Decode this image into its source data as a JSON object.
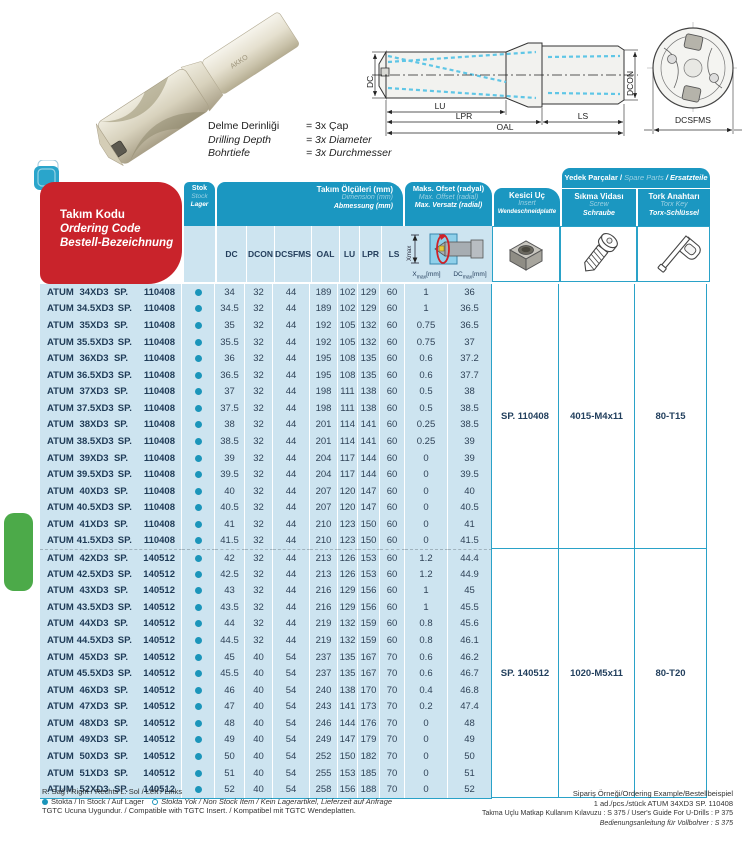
{
  "top": {
    "photo_brand": "AKKO",
    "depth_note": [
      [
        "Delme Derinliği",
        "= 3x Çap"
      ],
      [
        "Drilling Depth",
        "= 3x Diameter"
      ],
      [
        "Bohrtiefe",
        "= 3x Durchmesser"
      ]
    ],
    "diagram_labels": {
      "dc": "DC",
      "dcon": "DCON",
      "lu": "LU",
      "lpr": "LPR",
      "oal": "OAL",
      "ls": "LS",
      "dcsfms": "DCSFMS"
    }
  },
  "table": {
    "code_brand": "ATUM",
    "title": [
      "Takım Kodu",
      "Ordering Code",
      "Bestell-Bezeichnung"
    ],
    "stock_header": [
      "Stok",
      "Stock",
      "Lager"
    ],
    "dim_header": [
      "Takım Ölçüleri (mm)",
      "Dimension (mm)",
      "Abmessung (mm)"
    ],
    "dim_cols": [
      "DC",
      "DCON",
      "DCSFMS",
      "OAL",
      "LU",
      "LPR",
      "LS"
    ],
    "offset_header": [
      "Maks. Ofset (radyal)",
      "Max. Offset (radial)",
      "Max. Versatz (radial)"
    ],
    "offset_diagram_label": "Xmax",
    "offset_sub": [
      {
        "b": "X",
        "s": "max",
        "u": "[mm]"
      },
      {
        "b": "DC",
        "s": "max",
        "u": "[mm]"
      }
    ],
    "insert_header": [
      "Kesici Uç",
      "Insert",
      "Wendeschneidplatte"
    ],
    "spare_band": [
      "Yedek Parçalar /",
      "Spare Parts",
      "/ Ersatzteile"
    ],
    "screw_header": [
      "Sıkma Vidası",
      "Screw",
      "Schraube"
    ],
    "torx_header": [
      "Tork Anahtarı",
      "Torx Key",
      "Torx-Schlüssel"
    ],
    "all_rows_stock": "in",
    "groups": [
      {
        "sp": "SP.",
        "code_num": "110408",
        "spare": {
          "insert": "SP. 110408",
          "screw": "4015-M4x11",
          "torx": "80-T15"
        },
        "rows": [
          {
            "size": "34XD3",
            "dims": [
              "34",
              "32",
              "44",
              "189",
              "102",
              "129",
              "60"
            ],
            "xmax": "1",
            "dcmax": "36"
          },
          {
            "size": "34.5XD3",
            "dims": [
              "34.5",
              "32",
              "44",
              "189",
              "102",
              "129",
              "60"
            ],
            "xmax": "1",
            "dcmax": "36.5"
          },
          {
            "size": "35XD3",
            "dims": [
              "35",
              "32",
              "44",
              "192",
              "105",
              "132",
              "60"
            ],
            "xmax": "0.75",
            "dcmax": "36.5"
          },
          {
            "size": "35.5XD3",
            "dims": [
              "35.5",
              "32",
              "44",
              "192",
              "105",
              "132",
              "60"
            ],
            "xmax": "0.75",
            "dcmax": "37"
          },
          {
            "size": "36XD3",
            "dims": [
              "36",
              "32",
              "44",
              "195",
              "108",
              "135",
              "60"
            ],
            "xmax": "0.6",
            "dcmax": "37.2"
          },
          {
            "size": "36.5XD3",
            "dims": [
              "36.5",
              "32",
              "44",
              "195",
              "108",
              "135",
              "60"
            ],
            "xmax": "0.6",
            "dcmax": "37.7"
          },
          {
            "size": "37XD3",
            "dims": [
              "37",
              "32",
              "44",
              "198",
              "111",
              "138",
              "60"
            ],
            "xmax": "0.5",
            "dcmax": "38"
          },
          {
            "size": "37.5XD3",
            "dims": [
              "37.5",
              "32",
              "44",
              "198",
              "111",
              "138",
              "60"
            ],
            "xmax": "0.5",
            "dcmax": "38.5"
          },
          {
            "size": "38XD3",
            "dims": [
              "38",
              "32",
              "44",
              "201",
              "114",
              "141",
              "60"
            ],
            "xmax": "0.25",
            "dcmax": "38.5"
          },
          {
            "size": "38.5XD3",
            "dims": [
              "38.5",
              "32",
              "44",
              "201",
              "114",
              "141",
              "60"
            ],
            "xmax": "0.25",
            "dcmax": "39"
          },
          {
            "size": "39XD3",
            "dims": [
              "39",
              "32",
              "44",
              "204",
              "117",
              "144",
              "60"
            ],
            "xmax": "0",
            "dcmax": "39"
          },
          {
            "size": "39.5XD3",
            "dims": [
              "39.5",
              "32",
              "44",
              "204",
              "117",
              "144",
              "60"
            ],
            "xmax": "0",
            "dcmax": "39.5"
          },
          {
            "size": "40XD3",
            "dims": [
              "40",
              "32",
              "44",
              "207",
              "120",
              "147",
              "60"
            ],
            "xmax": "0",
            "dcmax": "40"
          },
          {
            "size": "40.5XD3",
            "dims": [
              "40.5",
              "32",
              "44",
              "207",
              "120",
              "147",
              "60"
            ],
            "xmax": "0",
            "dcmax": "40.5"
          },
          {
            "size": "41XD3",
            "dims": [
              "41",
              "32",
              "44",
              "210",
              "123",
              "150",
              "60"
            ],
            "xmax": "0",
            "dcmax": "41"
          },
          {
            "size": "41.5XD3",
            "dims": [
              "41.5",
              "32",
              "44",
              "210",
              "123",
              "150",
              "60"
            ],
            "xmax": "0",
            "dcmax": "41.5"
          }
        ]
      },
      {
        "sp": "SP.",
        "code_num": "140512",
        "spare": {
          "insert": "SP. 140512",
          "screw": "1020-M5x11",
          "torx": "80-T20"
        },
        "rows": [
          {
            "size": "42XD3",
            "dims": [
              "42",
              "32",
              "44",
              "213",
              "126",
              "153",
              "60"
            ],
            "xmax": "1.2",
            "dcmax": "44.4"
          },
          {
            "size": "42.5XD3",
            "dims": [
              "42.5",
              "32",
              "44",
              "213",
              "126",
              "153",
              "60"
            ],
            "xmax": "1.2",
            "dcmax": "44.9"
          },
          {
            "size": "43XD3",
            "dims": [
              "43",
              "32",
              "44",
              "216",
              "129",
              "156",
              "60"
            ],
            "xmax": "1",
            "dcmax": "45"
          },
          {
            "size": "43.5XD3",
            "dims": [
              "43.5",
              "32",
              "44",
              "216",
              "129",
              "156",
              "60"
            ],
            "xmax": "1",
            "dcmax": "45.5"
          },
          {
            "size": "44XD3",
            "dims": [
              "44",
              "32",
              "44",
              "219",
              "132",
              "159",
              "60"
            ],
            "xmax": "0.8",
            "dcmax": "45.6"
          },
          {
            "size": "44.5XD3",
            "dims": [
              "44.5",
              "32",
              "44",
              "219",
              "132",
              "159",
              "60"
            ],
            "xmax": "0.8",
            "dcmax": "46.1"
          },
          {
            "size": "45XD3",
            "dims": [
              "45",
              "40",
              "54",
              "237",
              "135",
              "167",
              "70"
            ],
            "xmax": "0.6",
            "dcmax": "46.2"
          },
          {
            "size": "45.5XD3",
            "dims": [
              "45.5",
              "40",
              "54",
              "237",
              "135",
              "167",
              "70"
            ],
            "xmax": "0.6",
            "dcmax": "46.7"
          },
          {
            "size": "46XD3",
            "dims": [
              "46",
              "40",
              "54",
              "240",
              "138",
              "170",
              "70"
            ],
            "xmax": "0.4",
            "dcmax": "46.8"
          },
          {
            "size": "47XD3",
            "dims": [
              "47",
              "40",
              "54",
              "243",
              "141",
              "173",
              "70"
            ],
            "xmax": "0.2",
            "dcmax": "47.4"
          },
          {
            "size": "48XD3",
            "dims": [
              "48",
              "40",
              "54",
              "246",
              "144",
              "176",
              "70"
            ],
            "xmax": "0",
            "dcmax": "48"
          },
          {
            "size": "49XD3",
            "dims": [
              "49",
              "40",
              "54",
              "249",
              "147",
              "179",
              "70"
            ],
            "xmax": "0",
            "dcmax": "49"
          },
          {
            "size": "50XD3",
            "dims": [
              "50",
              "40",
              "54",
              "252",
              "150",
              "182",
              "70"
            ],
            "xmax": "0",
            "dcmax": "50"
          },
          {
            "size": "51XD3",
            "dims": [
              "51",
              "40",
              "54",
              "255",
              "153",
              "185",
              "70"
            ],
            "xmax": "0",
            "dcmax": "51"
          },
          {
            "size": "52XD3",
            "dims": [
              "52",
              "40",
              "54",
              "258",
              "156",
              "188",
              "70"
            ],
            "xmax": "0",
            "dcmax": "52"
          }
        ]
      }
    ]
  },
  "footer": {
    "left1": "R: Sağ / Right / Rechts   L: Sol / Left / Links",
    "legend_in": "Stokta / In Stock / Auf Lager",
    "legend_out": "Stokta Yok / Non Stock Item / Kein Lagerartikel, Lieferzeit auf Anfrage",
    "left3": "TGTC Ucuna Uygundur. / Compatible with TGTC Insert. / Kompatibel mit TGTC Wendeplatten.",
    "right": [
      "Sipariş Örneği/Ordering Example/Bestellbeispiel",
      "1 ad./pcs./stück  ATUM 34XD3 SP. 110408",
      "Takma Uçlu Matkap Kullanım Kılavuzu : S 375 / User's Guide For U-Drills : P 375",
      "Bedienungsanleitung für Vollbohrer : S 375"
    ]
  },
  "colors": {
    "header_blue": "#1b97c1",
    "cell_blue": "#cde4f0",
    "red": "#c9232b",
    "navy_text": "#243e5c",
    "stock_dot": "#1b95ba",
    "green_tab": "#4caa49"
  }
}
